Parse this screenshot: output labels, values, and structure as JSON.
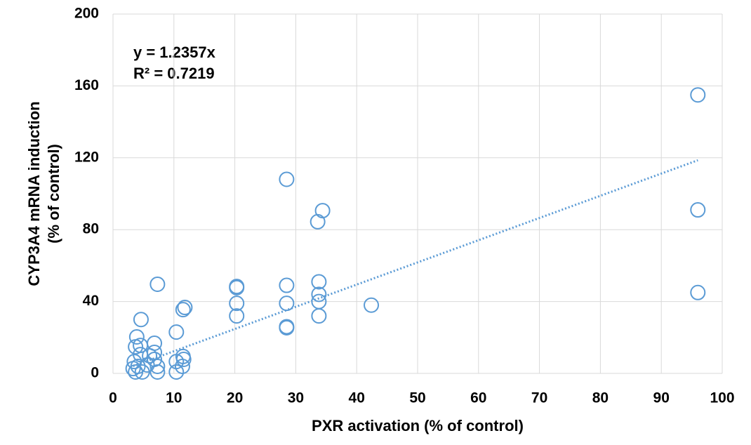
{
  "chart_data": {
    "type": "scatter",
    "x_label": "PXR activation (% of control)",
    "y_label": [
      "CYP3A4 mRNA induction",
      "(% of control)"
    ],
    "x": [
      96,
      96,
      96,
      28.5,
      34.4,
      33.6,
      33.8,
      33.8,
      33.8,
      33.8,
      42.4,
      28.5,
      28.5,
      28.5,
      28.5,
      20.3,
      20.3,
      20.3,
      20.3,
      11.8,
      11.5,
      7.3,
      10.4,
      4.6,
      3.9,
      11.5,
      11.6,
      11.4,
      10.4,
      10.4,
      6.8,
      6.8,
      6.8,
      7.3,
      7.3,
      3.7,
      4.5,
      4.5,
      3.5,
      4.1,
      3.7,
      4.8,
      5.6,
      6,
      3.3
    ],
    "values": [
      155,
      91,
      45,
      108,
      90.6,
      84.4,
      51,
      44,
      40,
      32,
      38,
      49,
      39,
      26,
      25.4,
      48.4,
      47.7,
      39,
      32,
      36.7,
      35.5,
      49.6,
      23,
      30,
      20.3,
      9.4,
      7.8,
      3.9,
      6.6,
      0.8,
      16.8,
      11.7,
      7.8,
      3.9,
      0.8,
      14.8,
      15.6,
      10.5,
      6.6,
      3.9,
      0.8,
      0.8,
      4.7,
      9.8,
      2.7
    ],
    "color": "#5b9bd5",
    "trendline": {
      "label": "y = 1.2357x",
      "r2_label": "R² = 0.7219",
      "slope": 1.2357,
      "x_range": [
        3.3,
        96
      ],
      "color": "#5b9bd5"
    },
    "xlim": [
      0,
      100
    ],
    "xticks": [
      0,
      10,
      20,
      30,
      40,
      50,
      60,
      70,
      80,
      90,
      100
    ],
    "ylim": [
      0,
      200
    ],
    "yticks": [
      0,
      40,
      80,
      120,
      160,
      200
    ],
    "grid": true
  }
}
